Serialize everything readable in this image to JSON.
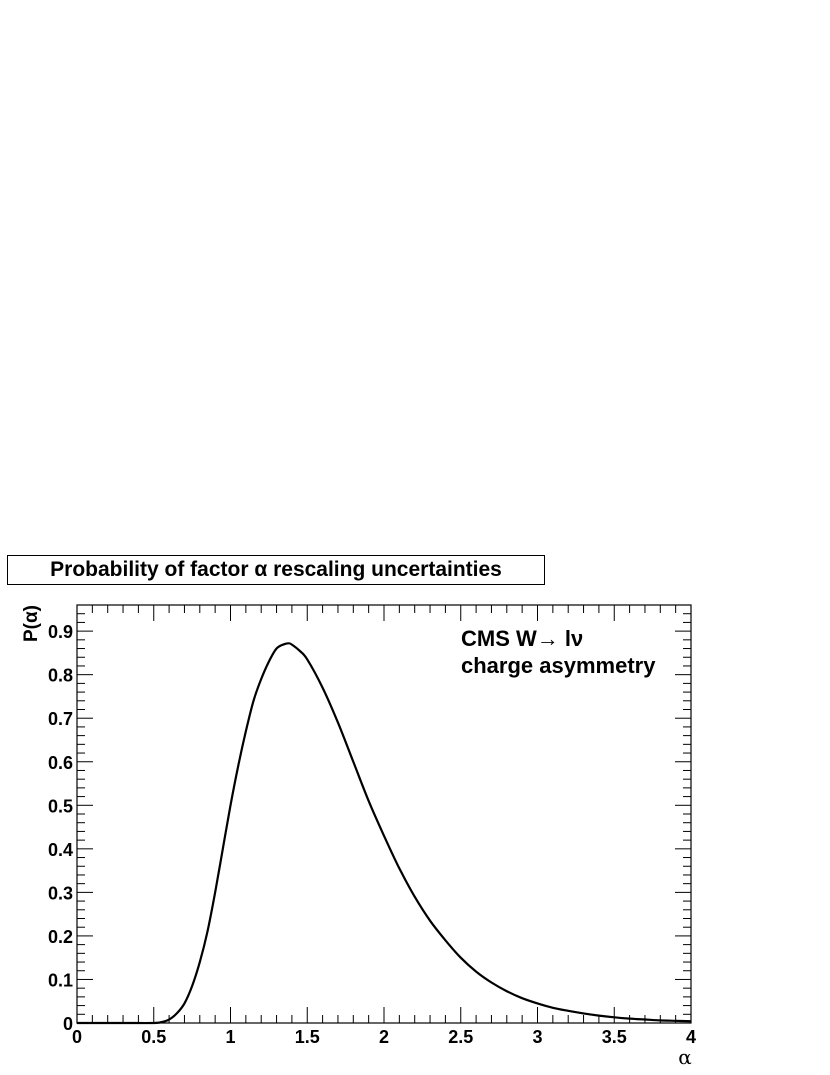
{
  "chart_data": {
    "type": "line",
    "title": "Probability of factor α rescaling uncertainties",
    "xlabel": "α",
    "ylabel": "P(α)",
    "xlim": [
      0,
      4
    ],
    "ylim": [
      0,
      0.96
    ],
    "x_ticks": [
      "0",
      "0.5",
      "1",
      "1.5",
      "2",
      "2.5",
      "3",
      "3.5",
      "4"
    ],
    "y_ticks": [
      "0",
      "0.1",
      "0.2",
      "0.3",
      "0.4",
      "0.5",
      "0.6",
      "0.7",
      "0.8",
      "0.9"
    ],
    "annotation": [
      "CMS W→ lν",
      "charge asymmetry"
    ],
    "grid": false,
    "series": [
      {
        "color": "#000000",
        "x": [
          0,
          0.3,
          0.5,
          0.55,
          0.6,
          0.65,
          0.7,
          0.75,
          0.8,
          0.85,
          0.9,
          0.95,
          1.0,
          1.05,
          1.1,
          1.15,
          1.2,
          1.25,
          1.3,
          1.35,
          1.38,
          1.4,
          1.45,
          1.5,
          1.6,
          1.7,
          1.8,
          1.9,
          2.0,
          2.1,
          2.2,
          2.3,
          2.4,
          2.5,
          2.6,
          2.7,
          2.8,
          2.9,
          3.0,
          3.1,
          3.2,
          3.3,
          3.4,
          3.5,
          3.6,
          3.7,
          3.8,
          3.9,
          4.0
        ],
        "y": [
          0,
          0,
          0.0,
          0.002,
          0.008,
          0.022,
          0.045,
          0.085,
          0.14,
          0.21,
          0.3,
          0.4,
          0.5,
          0.59,
          0.67,
          0.74,
          0.79,
          0.83,
          0.86,
          0.87,
          0.872,
          0.869,
          0.855,
          0.835,
          0.77,
          0.69,
          0.6,
          0.51,
          0.43,
          0.355,
          0.29,
          0.235,
          0.19,
          0.15,
          0.118,
          0.093,
          0.073,
          0.057,
          0.045,
          0.035,
          0.028,
          0.022,
          0.017,
          0.013,
          0.01,
          0.008,
          0.006,
          0.005,
          0.004
        ]
      }
    ]
  }
}
